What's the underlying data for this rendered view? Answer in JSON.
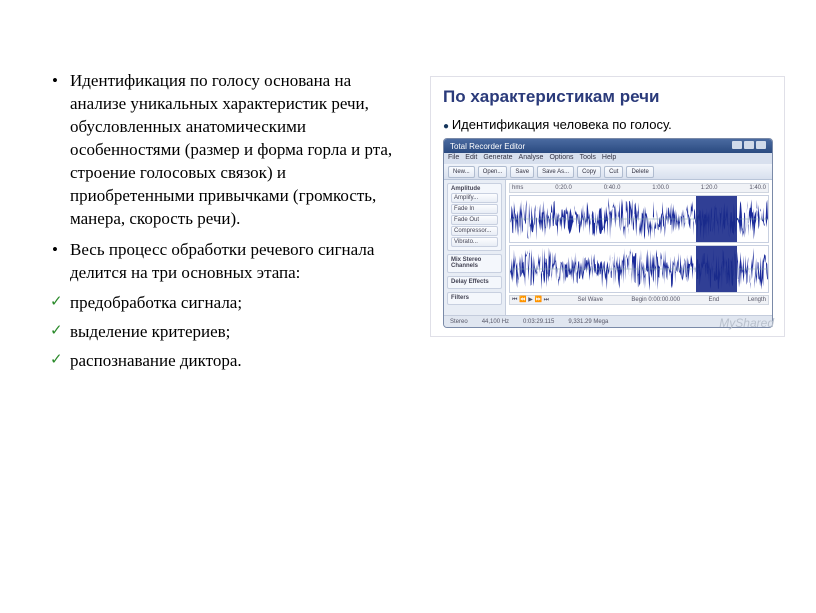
{
  "text": {
    "bullets": [
      "Идентификация по голосу основана на анализе уникальных характеристик речи, обусловленных анатомическими особенностями (размер и форма горла и рта, строение голосовых связок) и приобретенными привычками (громкость, манера, скорость речи).",
      "Весь процесс обработки речевого сигнала делится на три основных этапа:"
    ],
    "checks": [
      "предобработка сигнала;",
      "выделение критериев;",
      "распознавание диктора."
    ]
  },
  "slide": {
    "title": "По характеристикам речи",
    "subtitle": "Идентификация человека по голосу.",
    "watermark": "MyShared"
  },
  "app": {
    "title": "Total Recorder Editor",
    "menu": [
      "File",
      "Edit",
      "Generate",
      "Analyse",
      "Options",
      "Tools",
      "Help"
    ],
    "toolbar": [
      "New...",
      "Open...",
      "Save",
      "Save As...",
      "Copy",
      "Cut",
      "Delete"
    ],
    "side_groups": [
      {
        "title": "Amplitude",
        "items": [
          "Amplify...",
          "Fade In",
          "Fade Out",
          "Compressor...",
          "Vibrato..."
        ]
      },
      {
        "title": "Mix Stereo Channels",
        "items": []
      },
      {
        "title": "Delay Effects",
        "items": []
      },
      {
        "title": "Filters",
        "items": []
      }
    ],
    "ruler_ticks": [
      "hms",
      "0:20.0",
      "0:40.0",
      "1:00.0",
      "1:20.0",
      "1:40.0"
    ],
    "waveform": {
      "color": "#1a2a9a",
      "bg": "#ffffff",
      "selection": {
        "left_pct": 72,
        "width_pct": 16
      }
    },
    "status": {
      "mode": "Stereo",
      "rate": "44,100 Hz",
      "dur": "0:03:29.115",
      "size": "9,331.29 Mega"
    }
  }
}
